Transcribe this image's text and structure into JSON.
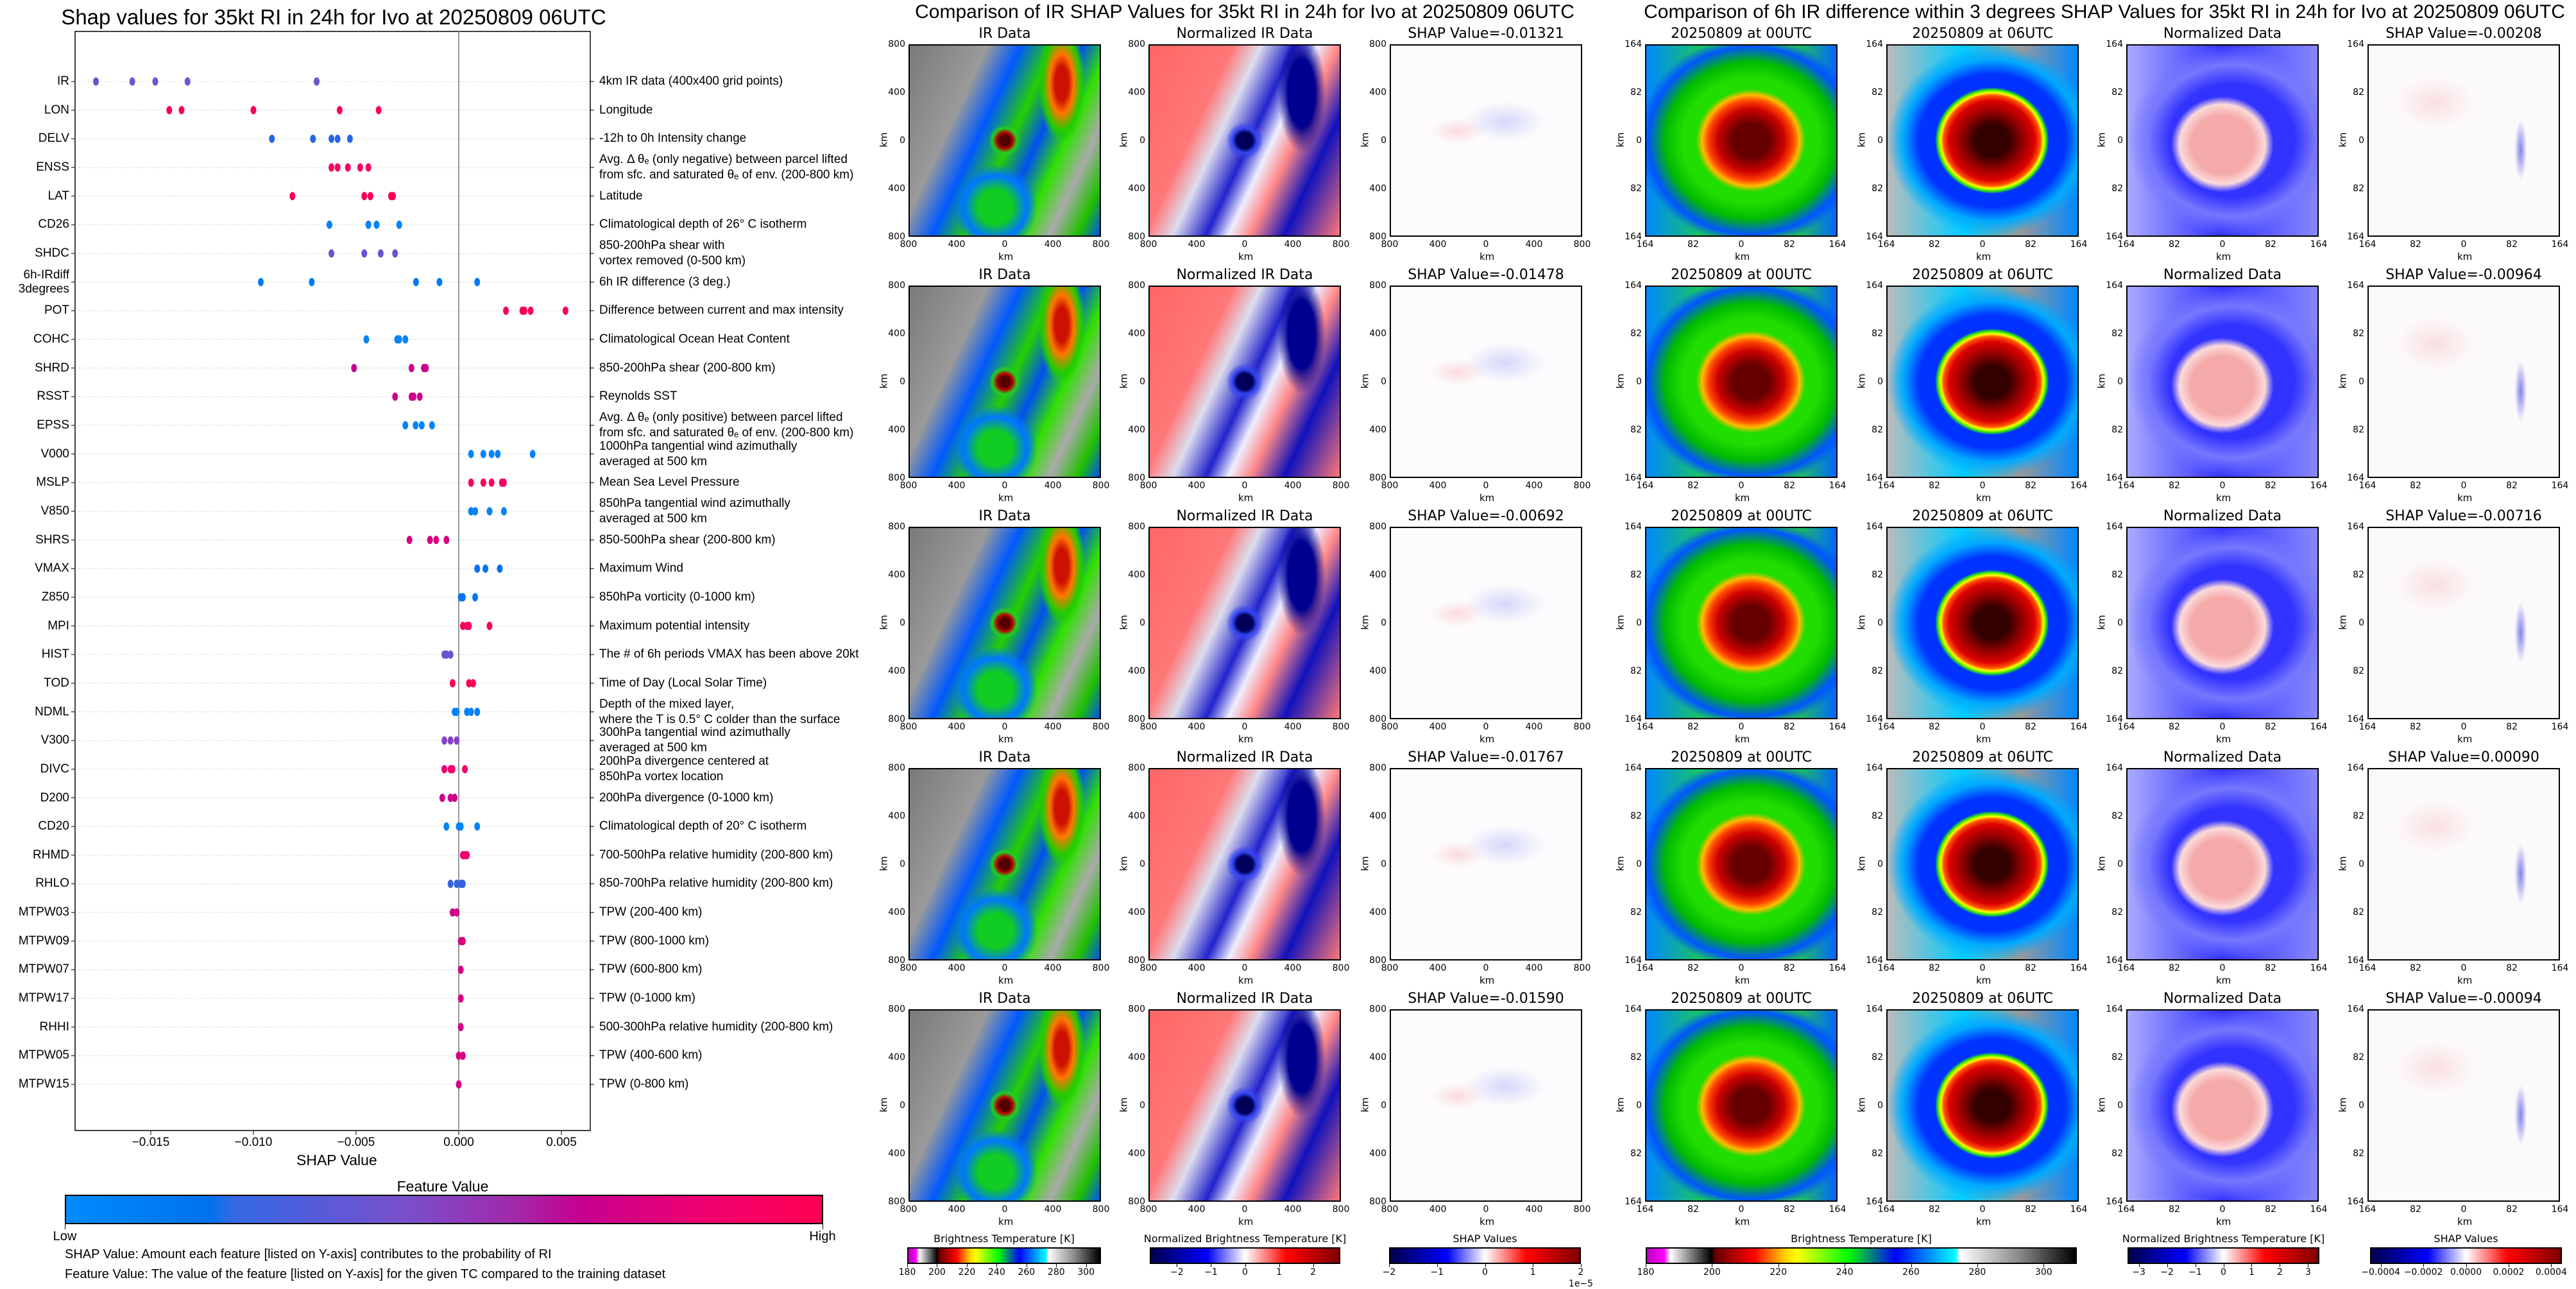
{
  "chart_data": [
    {
      "type": "scatter",
      "title": "Shap values for 35kt RI in 24h for Ivo at 20250809 06UTC",
      "xlabel": "SHAP Value",
      "xlim": [
        -0.0187,
        0.0064
      ],
      "xticks": [
        "−0.015",
        "−0.010",
        "−0.005",
        "0.000",
        "0.005"
      ],
      "xtick_values": [
        -0.015,
        -0.01,
        -0.005,
        0.0,
        0.005
      ],
      "grid": "dotted horizontal",
      "features": [
        {
          "name": "IR",
          "desc": [
            "4km IR data (400x400 grid points)"
          ],
          "feature_value": 0.42,
          "shap": [
            -0.01767,
            -0.0159,
            -0.01478,
            -0.01321,
            -0.00692
          ]
        },
        {
          "name": "LON",
          "desc": [
            "Longitude"
          ],
          "feature_value": 0.96,
          "shap": [
            -0.0141,
            -0.0135,
            -0.01,
            -0.0058,
            -0.0039
          ]
        },
        {
          "name": "DELV",
          "desc": [
            "-12h to 0h Intensity change"
          ],
          "feature_value": 0.27,
          "shap": [
            -0.0091,
            -0.0071,
            -0.0062,
            -0.0059,
            -0.0053
          ]
        },
        {
          "name": "ENSS",
          "desc": [
            "Avg. Δ θₑ (only negative) between parcel lifted",
            "from sfc. and saturated θₑ of env. (200-800 km)"
          ],
          "feature_value": 0.9,
          "shap": [
            -0.0062,
            -0.0059,
            -0.0054,
            -0.0048,
            -0.0044
          ]
        },
        {
          "name": "LAT",
          "desc": [
            "Latitude"
          ],
          "feature_value": 0.95,
          "shap": [
            -0.0081,
            -0.0046,
            -0.0043,
            -0.0033,
            -0.0032
          ]
        },
        {
          "name": "CD26",
          "desc": [
            "Climatological depth of 26° C isotherm"
          ],
          "feature_value": 0.05,
          "shap": [
            -0.0063,
            -0.0044,
            -0.0044,
            -0.004,
            -0.0029
          ]
        },
        {
          "name": "SHDC",
          "desc": [
            "850-200hPa shear with",
            "vortex removed (0-500 km)"
          ],
          "feature_value": 0.42,
          "shap": [
            -0.0062,
            -0.0046,
            -0.0038,
            -0.0031
          ]
        },
        {
          "name": "6h-IRdiff\n3degrees",
          "desc": [
            "6h IR difference (3 deg.)"
          ],
          "feature_value": 0.12,
          "shap": [
            -0.00964,
            -0.00716,
            -0.00208,
            -0.00094,
            0.0009
          ]
        },
        {
          "name": "POT",
          "desc": [
            "Difference between current and max intensity"
          ],
          "feature_value": 0.95,
          "shap": [
            0.0023,
            0.0031,
            0.0032,
            0.0035,
            0.0052
          ]
        },
        {
          "name": "COHC",
          "desc": [
            "Climatological Ocean Heat Content"
          ],
          "feature_value": 0.05,
          "shap": [
            -0.0045,
            -0.003,
            -0.0029,
            -0.0026
          ]
        },
        {
          "name": "SHRD",
          "desc": [
            "850-200hPa shear (200-800 km)"
          ],
          "feature_value": 0.68,
          "shap": [
            -0.0051,
            -0.0023,
            -0.0017,
            -0.0016
          ]
        },
        {
          "name": "RSST",
          "desc": [
            "Reynolds SST"
          ],
          "feature_value": 0.7,
          "shap": [
            -0.0031,
            -0.0023,
            -0.0022,
            -0.0019
          ]
        },
        {
          "name": "EPSS",
          "desc": [
            "Avg. Δ θₑ (only positive) between parcel lifted",
            "from sfc. and saturated θₑ of env. (200-800 km)"
          ],
          "feature_value": 0.05,
          "shap": [
            -0.0026,
            -0.0021,
            -0.0018,
            -0.0013
          ]
        },
        {
          "name": "V000",
          "desc": [
            "1000hPa tangential wind azimuthally",
            "averaged at 500 km"
          ],
          "feature_value": 0.05,
          "shap": [
            0.0006,
            0.0012,
            0.0016,
            0.0019,
            0.0036
          ]
        },
        {
          "name": "MSLP",
          "desc": [
            "Mean Sea Level Pressure"
          ],
          "feature_value": 0.93,
          "shap": [
            0.0006,
            0.0012,
            0.0016,
            0.0021,
            0.0022
          ]
        },
        {
          "name": "V850",
          "desc": [
            "850hPa tangential wind azimuthally",
            "averaged at 500 km"
          ],
          "feature_value": 0.06,
          "shap": [
            0.0006,
            0.0008,
            0.0015,
            0.0022
          ]
        },
        {
          "name": "SHRS",
          "desc": [
            "850-500hPa shear (200-800 km)"
          ],
          "feature_value": 0.75,
          "shap": [
            -0.0024,
            -0.0014,
            -0.0011,
            -0.0006
          ]
        },
        {
          "name": "VMAX",
          "desc": [
            "Maximum Wind"
          ],
          "feature_value": 0.18,
          "shap": [
            0.0009,
            0.0013,
            0.002
          ]
        },
        {
          "name": "Z850",
          "desc": [
            "850hPa vorticity (0-1000 km)"
          ],
          "feature_value": 0.16,
          "shap": [
            0.0001,
            0.0002,
            0.0008
          ]
        },
        {
          "name": "MPI",
          "desc": [
            "Maximum potential intensity"
          ],
          "feature_value": 0.93,
          "shap": [
            0.0002,
            0.0004,
            0.0005,
            0.0015
          ]
        },
        {
          "name": "HIST",
          "desc": [
            "The # of 6h periods VMAX has been above 20kt"
          ],
          "feature_value": 0.4,
          "shap": [
            -0.0007,
            -0.0006,
            -0.0004
          ]
        },
        {
          "name": "TOD",
          "desc": [
            "Time of Day (Local Solar Time)"
          ],
          "feature_value": 0.95,
          "shap": [
            -0.0003,
            0.0005,
            0.0007
          ]
        },
        {
          "name": "NDML",
          "desc": [
            "Depth of the mixed layer,",
            "where the T is 0.5° C colder than the surface"
          ],
          "feature_value": 0.06,
          "shap": [
            -0.0002,
            -0.0001,
            0.0004,
            0.0006,
            0.0009
          ]
        },
        {
          "name": "V300",
          "desc": [
            "300hPa tangential wind azimuthally",
            "averaged at 500 km"
          ],
          "feature_value": 0.5,
          "shap": [
            -0.0007,
            -0.0004,
            -0.0001
          ]
        },
        {
          "name": "DIVC",
          "desc": [
            "200hPa divergence centered at",
            "850hPa vortex location"
          ],
          "feature_value": 0.86,
          "shap": [
            -0.0007,
            -0.0004,
            -0.0003,
            0.0003
          ]
        },
        {
          "name": "D200",
          "desc": [
            "200hPa divergence (0-1000 km)"
          ],
          "feature_value": 0.7,
          "shap": [
            -0.0008,
            -0.0004,
            -0.0002
          ]
        },
        {
          "name": "CD20",
          "desc": [
            "Climatological depth of 20° C isotherm"
          ],
          "feature_value": 0.05,
          "shap": [
            -0.0006,
            0.0,
            0.0001,
            0.0009
          ]
        },
        {
          "name": "RHMD",
          "desc": [
            "700-500hPa relative humidity (200-800 km)"
          ],
          "feature_value": 0.85,
          "shap": [
            0.0002,
            0.0003,
            0.0004
          ]
        },
        {
          "name": "RHLO",
          "desc": [
            "850-700hPa relative humidity (200-800 km)"
          ],
          "feature_value": 0.3,
          "shap": [
            -0.0004,
            -0.0001,
            0.0001,
            0.0002
          ]
        },
        {
          "name": "MTPW03",
          "desc": [
            "TPW (200-400 km)"
          ],
          "feature_value": 0.72,
          "shap": [
            -0.0003,
            -0.0001
          ]
        },
        {
          "name": "MTPW09",
          "desc": [
            "TPW (800-1000 km)"
          ],
          "feature_value": 0.75,
          "shap": [
            0.0001,
            0.0002
          ]
        },
        {
          "name": "MTPW07",
          "desc": [
            "TPW (600-800 km)"
          ],
          "feature_value": 0.75,
          "shap": [
            0.0001
          ]
        },
        {
          "name": "MTPW17",
          "desc": [
            "TPW (0-1000 km)"
          ],
          "feature_value": 0.75,
          "shap": [
            0.0001
          ]
        },
        {
          "name": "RHHI",
          "desc": [
            "500-300hPa relative humidity (200-800 km)"
          ],
          "feature_value": 0.72,
          "shap": [
            0.0001
          ]
        },
        {
          "name": "MTPW05",
          "desc": [
            "TPW (400-600 km)"
          ],
          "feature_value": 0.74,
          "shap": [
            0.0,
            0.0002
          ]
        },
        {
          "name": "MTPW15",
          "desc": [
            "TPW (0-800 km)"
          ],
          "feature_value": 0.74,
          "shap": [
            0.0
          ]
        }
      ],
      "colorbar": {
        "title": "Feature Value",
        "low": "Low",
        "high": "High",
        "low_color": "#008bfb",
        "high_color": "#ff0052"
      },
      "notes": [
        "SHAP Value: Amount each feature [listed on Y-axis] contributes to the probability of RI",
        "Feature Value: The value of the feature [listed on Y-axis] for the given TC compared to the training dataset"
      ]
    },
    {
      "type": "heatmap",
      "title": "Comparison of IR SHAP Values for 35kt RI in 24h for Ivo at 20250809 06UTC",
      "xlabel": "km",
      "ylabel": "km",
      "ticks": [
        "800",
        "400",
        "0",
        "400",
        "800"
      ],
      "columns": [
        "IR Data",
        "Normalized IR Data",
        "SHAP"
      ],
      "shap_values": [
        "SHAP Value=-0.01321",
        "SHAP Value=-0.01478",
        "SHAP Value=-0.00692",
        "SHAP Value=-0.01767",
        "SHAP Value=-0.01590"
      ],
      "colorbars": [
        {
          "title": "Brightness Temperature [K]",
          "cmap": "ir",
          "range": [
            180,
            310
          ],
          "ticks": [
            180,
            200,
            220,
            240,
            260,
            280,
            300
          ]
        },
        {
          "title": "Normalized Brightness Temperature [K]",
          "cmap": "div",
          "range": [
            -2.8,
            2.8
          ],
          "ticks": [
            "−2",
            "−1",
            "0",
            "1",
            "2"
          ],
          "tick_values": [
            -2,
            -1,
            0,
            1,
            2
          ]
        },
        {
          "title": "SHAP Values",
          "cmap": "div",
          "range": [
            -2,
            2
          ],
          "ticks": [
            "−2",
            "−1",
            "0",
            "1",
            "2"
          ],
          "tick_values": [
            -2,
            -1,
            0,
            1,
            2
          ],
          "offset": "1e−5"
        }
      ]
    },
    {
      "type": "heatmap",
      "title": "Comparison of 6h IR difference within 3 degrees SHAP Values for 35kt RI in 24h for Ivo at 20250809 06UTC",
      "xlabel": "km",
      "ylabel": "km",
      "ticks": [
        "164",
        "82",
        "0",
        "82",
        "164"
      ],
      "columns": [
        "20250809 at 00UTC",
        "20250809 at 06UTC",
        "Normalized Data",
        "SHAP"
      ],
      "shap_values": [
        "SHAP Value=-0.00208",
        "SHAP Value=-0.00964",
        "SHAP Value=-0.00716",
        "SHAP Value=0.00090",
        "SHAP Value=-0.00094"
      ],
      "colorbars": [
        {
          "title": "Brightness Temperature [K]",
          "cmap": "ir",
          "range": [
            180,
            310
          ],
          "ticks": [
            180,
            200,
            220,
            240,
            260,
            280,
            300
          ]
        },
        {
          "title": "Normalized Brightness Temperature [K]",
          "cmap": "div",
          "range": [
            -3.4,
            3.4
          ],
          "ticks": [
            "−3",
            "−2",
            "−1",
            "0",
            "1",
            "2",
            "3"
          ],
          "tick_values": [
            -3,
            -2,
            -1,
            0,
            1,
            2,
            3
          ]
        },
        {
          "title": "SHAP Values",
          "cmap": "div",
          "range": [
            -0.00045,
            0.00045
          ],
          "ticks": [
            "−0.0004",
            "−0.0002",
            "0.0000",
            "0.0002",
            "0.0004"
          ],
          "tick_values": [
            -0.0004,
            -0.0002,
            0,
            0.0002,
            0.0004
          ]
        }
      ]
    }
  ]
}
